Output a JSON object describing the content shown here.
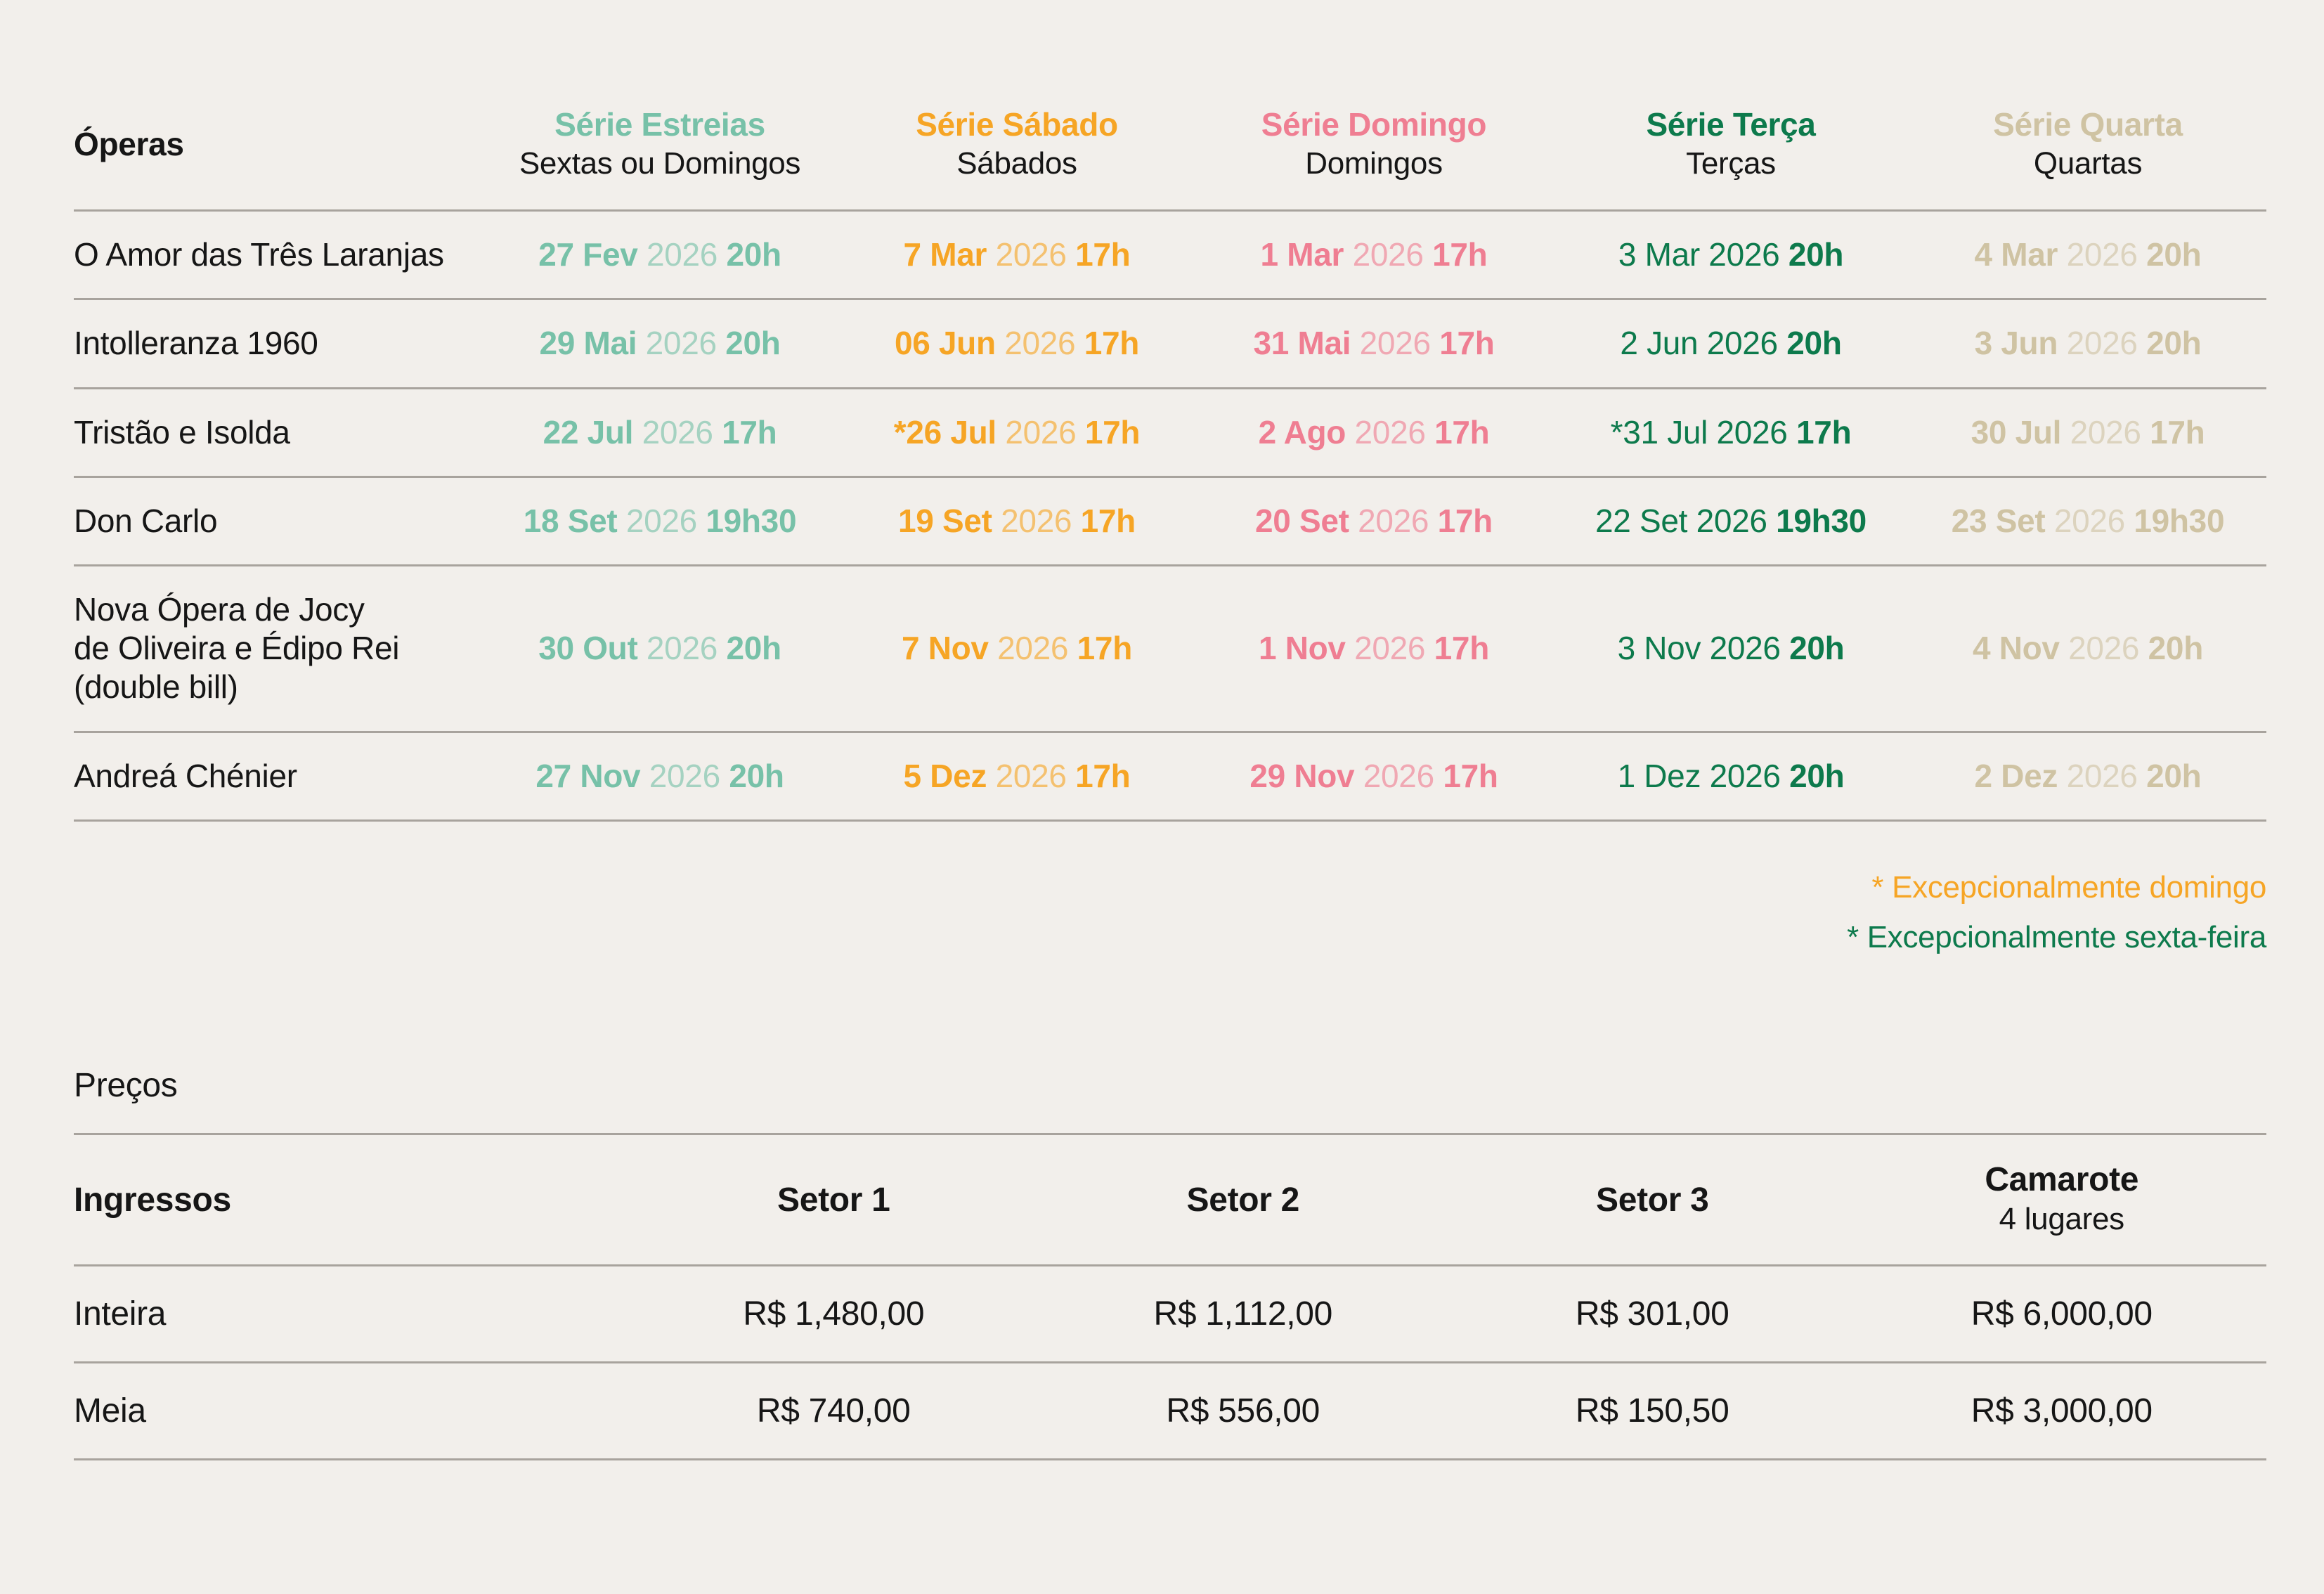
{
  "colors": {
    "teal": "#77C1A8",
    "amber": "#F6A525",
    "pink": "#EF7E92",
    "green": "#0D7A4C",
    "beige": "#CFC3A3",
    "divider": "#A8A39D",
    "background": "#F2EFEB",
    "text": "#161616"
  },
  "schedule": {
    "col0_header": "Óperas",
    "series": [
      {
        "name": "Série Estreias",
        "sub": "Sextas ou Domingos",
        "color": "teal",
        "date_bold": true
      },
      {
        "name": "Série Sábado",
        "sub": "Sábados",
        "color": "amber",
        "date_bold": true
      },
      {
        "name": "Série Domingo",
        "sub": "Domingos",
        "color": "pink",
        "date_bold": true
      },
      {
        "name": "Série Terça",
        "sub": "Terças",
        "color": "green",
        "date_bold": false
      },
      {
        "name": "Série Quarta",
        "sub": "Quartas",
        "color": "beige",
        "date_bold": true
      }
    ],
    "rows": [
      {
        "opera": "O Amor das Três Laranjas",
        "dates": [
          [
            "27 Fev",
            "2026",
            "20h"
          ],
          [
            "7 Mar",
            "2026",
            "17h"
          ],
          [
            "1 Mar",
            "2026",
            "17h"
          ],
          [
            "3 Mar 2026",
            "",
            "20h"
          ],
          [
            "4 Mar",
            "2026",
            "20h"
          ]
        ]
      },
      {
        "opera": "Intolleranza 1960",
        "dates": [
          [
            "29 Mai",
            "2026",
            "20h"
          ],
          [
            "06 Jun",
            "2026",
            "17h"
          ],
          [
            "31 Mai",
            "2026",
            "17h"
          ],
          [
            "2 Jun 2026",
            "",
            "20h"
          ],
          [
            "3 Jun",
            "2026",
            "20h"
          ]
        ]
      },
      {
        "opera": "Tristão e Isolda",
        "dates": [
          [
            "22 Jul",
            "2026",
            "17h"
          ],
          [
            "*26 Jul",
            "2026",
            "17h"
          ],
          [
            "2 Ago",
            "2026",
            "17h"
          ],
          [
            "*31 Jul 2026",
            "",
            "17h"
          ],
          [
            "30 Jul",
            "2026",
            "17h"
          ]
        ]
      },
      {
        "opera": "Don Carlo",
        "dates": [
          [
            "18 Set",
            "2026",
            "19h30"
          ],
          [
            "19 Set",
            "2026",
            "17h"
          ],
          [
            "20 Set",
            "2026",
            "17h"
          ],
          [
            "22 Set 2026",
            "",
            "19h30"
          ],
          [
            "23 Set",
            "2026",
            "19h30"
          ]
        ]
      },
      {
        "opera": "Nova Ópera de Jocy\nde Oliveira e Édipo Rei\n(double bill)",
        "dates": [
          [
            "30 Out",
            "2026",
            "20h"
          ],
          [
            "7 Nov",
            "2026",
            "17h"
          ],
          [
            "1 Nov",
            "2026",
            "17h"
          ],
          [
            "3 Nov 2026",
            "",
            "20h"
          ],
          [
            "4 Nov",
            "2026",
            "20h"
          ]
        ]
      },
      {
        "opera": "Andreá Chénier",
        "dates": [
          [
            "27 Nov",
            "2026",
            "20h"
          ],
          [
            "5 Dez",
            "2026",
            "17h"
          ],
          [
            "29 Nov",
            "2026",
            "17h"
          ],
          [
            "1 Dez 2026",
            "",
            "20h"
          ],
          [
            "2 Dez",
            "2026",
            "20h"
          ]
        ]
      }
    ]
  },
  "footnotes": [
    {
      "text": "* Excepcionalmente domingo",
      "color": "amber"
    },
    {
      "text": "* Excepcionalmente sexta-feira",
      "color": "green"
    }
  ],
  "prices": {
    "title": "Preços",
    "col0_header": "Ingressos",
    "columns": [
      {
        "name": "Setor 1",
        "sub": ""
      },
      {
        "name": "Setor 2",
        "sub": ""
      },
      {
        "name": "Setor 3",
        "sub": ""
      },
      {
        "name": "Camarote",
        "sub": "4 lugares"
      }
    ],
    "rows": [
      {
        "label": "Inteira",
        "values": [
          "R$ 1,480,00",
          "R$ 1,112,00",
          "R$ 301,00",
          "R$ 6,000,00"
        ]
      },
      {
        "label": "Meia",
        "values": [
          "R$ 740,00",
          "R$ 556,00",
          "R$ 150,50",
          "R$ 3,000,00"
        ]
      }
    ]
  }
}
